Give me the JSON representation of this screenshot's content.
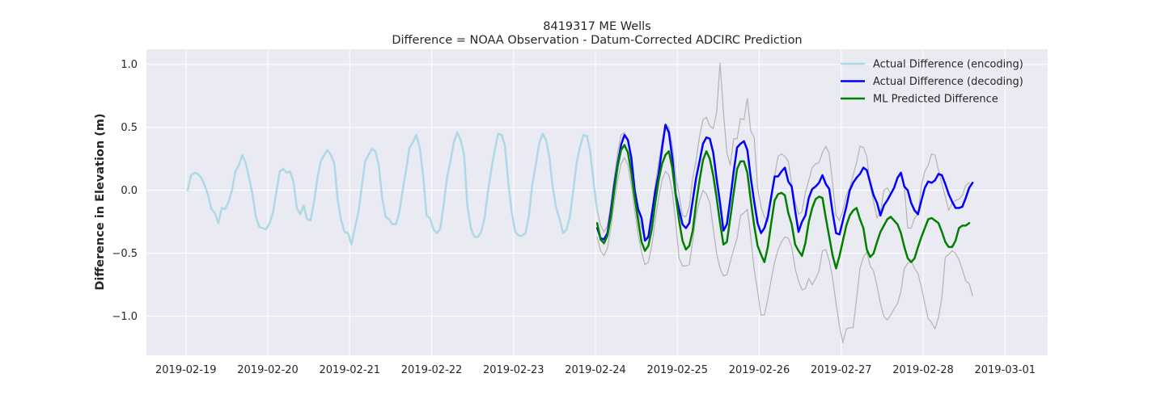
{
  "chart_data": {
    "type": "line",
    "title": "8419317 ME Wells",
    "subtitle": "Difference = NOAA Observation - Datum-Corrected ADCIRC Prediction",
    "xlabel": "",
    "ylabel": "Difference in Elevation (m)",
    "x_ticks": [
      "2019-02-19",
      "2019-02-20",
      "2019-02-21",
      "2019-02-22",
      "2019-02-23",
      "2019-02-24",
      "2019-02-25",
      "2019-02-26",
      "2019-02-27",
      "2019-02-28",
      "2019-03-01"
    ],
    "y_ticks": [
      "1.0",
      "0.5",
      "0.0",
      "−0.5",
      "−1.0"
    ],
    "xlim": [
      "2019-02-18 12:26",
      "2019-03-01 12:30"
    ],
    "ylim": [
      -1.31,
      1.12
    ],
    "grid": true,
    "legend_position": "top-right",
    "colors": {
      "background": "#eaeaf2",
      "grid": "#ffffff",
      "encoding": "#add8e6",
      "decoding": "#0000ff",
      "predicted": "#008000",
      "bounds": "#b3b3b3"
    },
    "series": [
      {
        "name": "Actual Difference (encoding)",
        "x_start": "2019-02-19 00:30",
        "x_step_hours": 1,
        "values": [
          0.0,
          0.12,
          0.14,
          0.13,
          0.1,
          0.04,
          -0.04,
          -0.15,
          -0.18,
          -0.26,
          -0.14,
          -0.15,
          -0.09,
          0.0,
          0.15,
          0.2,
          0.28,
          0.22,
          0.1,
          -0.03,
          -0.21,
          -0.29,
          -0.3,
          -0.31,
          -0.26,
          -0.18,
          -0.01,
          0.15,
          0.17,
          0.14,
          0.15,
          0.07,
          -0.14,
          -0.19,
          -0.12,
          -0.23,
          -0.24,
          -0.1,
          0.09,
          0.23,
          0.28,
          0.32,
          0.28,
          0.21,
          -0.08,
          -0.24,
          -0.33,
          -0.34,
          -0.43,
          -0.3,
          -0.18,
          0.02,
          0.23,
          0.28,
          0.33,
          0.31,
          0.2,
          -0.06,
          -0.21,
          -0.23,
          -0.27,
          -0.27,
          -0.18,
          0.0,
          0.16,
          0.34,
          0.38,
          0.44,
          0.34,
          0.12,
          -0.2,
          -0.22,
          -0.31,
          -0.34,
          -0.31,
          -0.12,
          0.1,
          0.23,
          0.38,
          0.46,
          0.4,
          0.28,
          -0.13,
          -0.3,
          -0.37,
          -0.37,
          -0.33,
          -0.22,
          -0.01,
          0.17,
          0.32,
          0.45,
          0.44,
          0.35,
          0.05,
          -0.18,
          -0.33,
          -0.36,
          -0.36,
          -0.34,
          -0.2,
          0.05,
          0.2,
          0.37,
          0.45,
          0.4,
          0.26,
          0.02,
          -0.14,
          -0.23,
          -0.34,
          -0.31,
          -0.21,
          0.0,
          0.22,
          0.35,
          0.44,
          0.43,
          0.3,
          0.05,
          -0.16
        ]
      },
      {
        "name": "Actual Difference (decoding)",
        "x_start": "2019-02-24 00:30",
        "x_step_hours": 1,
        "values": [
          -0.3,
          -0.38,
          -0.39,
          -0.34,
          -0.17,
          0.04,
          0.21,
          0.36,
          0.44,
          0.4,
          0.26,
          0.0,
          -0.15,
          -0.22,
          -0.4,
          -0.37,
          -0.19,
          -0.01,
          0.13,
          0.33,
          0.52,
          0.46,
          0.26,
          -0.03,
          -0.15,
          -0.27,
          -0.3,
          -0.26,
          -0.08,
          0.1,
          0.23,
          0.37,
          0.42,
          0.41,
          0.3,
          0.09,
          -0.1,
          -0.32,
          -0.27,
          -0.07,
          0.15,
          0.34,
          0.37,
          0.39,
          0.32,
          0.1,
          -0.09,
          -0.26,
          -0.34,
          -0.3,
          -0.21,
          -0.05,
          0.11,
          0.11,
          0.15,
          0.18,
          0.07,
          0.03,
          -0.16,
          -0.33,
          -0.25,
          -0.2,
          -0.06,
          0.01,
          0.03,
          0.06,
          0.12,
          0.05,
          0.01,
          -0.18,
          -0.34,
          -0.35,
          -0.24,
          -0.13,
          0.0,
          0.06,
          0.1,
          0.13,
          0.18,
          0.16,
          0.06,
          -0.04,
          -0.1,
          -0.2,
          -0.12,
          -0.08,
          -0.03,
          0.02,
          0.1,
          0.14,
          0.03,
          0.0,
          -0.1,
          -0.16,
          -0.19,
          -0.08,
          0.02,
          0.07,
          0.06,
          0.08,
          0.13,
          0.12,
          0.05,
          -0.03,
          -0.09,
          -0.14,
          -0.14,
          -0.13,
          -0.06,
          0.02,
          0.06
        ]
      },
      {
        "name": "ML Predicted Difference",
        "x_start": "2019-02-24 00:30",
        "x_step_hours": 1,
        "values": [
          -0.26,
          -0.39,
          -0.42,
          -0.36,
          -0.21,
          0.0,
          0.19,
          0.32,
          0.36,
          0.3,
          0.14,
          -0.06,
          -0.24,
          -0.41,
          -0.48,
          -0.44,
          -0.31,
          -0.1,
          0.08,
          0.21,
          0.28,
          0.31,
          0.18,
          -0.04,
          -0.24,
          -0.4,
          -0.47,
          -0.44,
          -0.32,
          -0.1,
          0.08,
          0.24,
          0.31,
          0.25,
          0.12,
          -0.06,
          -0.26,
          -0.43,
          -0.41,
          -0.22,
          -0.02,
          0.17,
          0.23,
          0.23,
          0.14,
          -0.08,
          -0.28,
          -0.44,
          -0.51,
          -0.57,
          -0.45,
          -0.26,
          -0.08,
          -0.03,
          -0.02,
          -0.04,
          -0.18,
          -0.27,
          -0.43,
          -0.48,
          -0.52,
          -0.42,
          -0.25,
          -0.14,
          -0.07,
          -0.05,
          -0.06,
          -0.22,
          -0.37,
          -0.52,
          -0.62,
          -0.52,
          -0.4,
          -0.28,
          -0.2,
          -0.16,
          -0.14,
          -0.23,
          -0.3,
          -0.47,
          -0.53,
          -0.5,
          -0.41,
          -0.33,
          -0.28,
          -0.23,
          -0.21,
          -0.24,
          -0.27,
          -0.34,
          -0.45,
          -0.54,
          -0.57,
          -0.54,
          -0.45,
          -0.37,
          -0.3,
          -0.23,
          -0.22,
          -0.24,
          -0.26,
          -0.33,
          -0.41,
          -0.45,
          -0.45,
          -0.4,
          -0.3,
          -0.28,
          -0.28,
          -0.26
        ]
      },
      {
        "name": "",
        "x_start": "2019-02-24 00:30",
        "x_step_hours": 1,
        "values": [
          -0.16,
          -0.28,
          -0.33,
          -0.28,
          -0.11,
          0.1,
          0.3,
          0.44,
          0.46,
          0.39,
          0.22,
          0.0,
          -0.18,
          -0.3,
          -0.4,
          -0.35,
          -0.18,
          0.04,
          0.22,
          0.39,
          0.53,
          0.5,
          0.36,
          0.12,
          -0.04,
          -0.2,
          -0.21,
          -0.13,
          0.1,
          0.24,
          0.43,
          0.56,
          0.58,
          0.51,
          0.49,
          0.62,
          1.01,
          0.62,
          0.3,
          0.2,
          0.41,
          0.41,
          0.57,
          0.56,
          0.73,
          0.47,
          0.42,
          0.02,
          -0.13,
          -0.21,
          -0.25,
          -0.08,
          0.12,
          0.27,
          0.29,
          0.27,
          0.23,
          0.05,
          -0.09,
          -0.19,
          -0.17,
          -0.02,
          0.08,
          0.18,
          0.21,
          0.22,
          0.3,
          0.35,
          0.29,
          0.05,
          -0.2,
          -0.24,
          -0.16,
          -0.04,
          0.02,
          0.12,
          0.22,
          0.35,
          0.34,
          0.27,
          0.03,
          -0.09,
          -0.22,
          -0.17,
          0.0,
          0.02,
          -0.03,
          0.02,
          0.09,
          0.12,
          0.02,
          -0.3,
          -0.3,
          -0.22,
          -0.19,
          0.04,
          0.15,
          0.2,
          0.29,
          0.28,
          0.16,
          0.05,
          -0.05,
          -0.16,
          -0.1,
          -0.08,
          -0.07,
          -0.04,
          0.04,
          0.06
        ]
      },
      {
        "name": "",
        "x_start": "2019-02-24 00:30",
        "x_step_hours": 1,
        "values": [
          -0.37,
          -0.48,
          -0.52,
          -0.46,
          -0.3,
          -0.1,
          0.08,
          0.21,
          0.26,
          0.2,
          0.04,
          -0.16,
          -0.35,
          -0.49,
          -0.59,
          -0.57,
          -0.44,
          -0.24,
          -0.06,
          0.08,
          0.15,
          0.12,
          -0.01,
          -0.25,
          -0.54,
          -0.6,
          -0.6,
          -0.59,
          -0.4,
          -0.2,
          -0.08,
          0.0,
          -0.03,
          -0.1,
          -0.3,
          -0.5,
          -0.62,
          -0.68,
          -0.67,
          -0.57,
          -0.47,
          -0.38,
          -0.2,
          -0.18,
          -0.15,
          -0.37,
          -0.63,
          -0.8,
          -0.99,
          -0.99,
          -0.86,
          -0.71,
          -0.57,
          -0.47,
          -0.41,
          -0.37,
          -0.38,
          -0.45,
          -0.62,
          -0.72,
          -0.79,
          -0.78,
          -0.7,
          -0.75,
          -0.7,
          -0.64,
          -0.48,
          -0.47,
          -0.56,
          -0.7,
          -0.9,
          -1.08,
          -1.21,
          -1.1,
          -1.09,
          -1.09,
          -0.86,
          -0.62,
          -0.53,
          -0.49,
          -0.6,
          -0.64,
          -0.76,
          -0.9,
          -1.0,
          -1.03,
          -0.99,
          -0.94,
          -0.9,
          -0.8,
          -0.62,
          -0.58,
          -0.56,
          -0.62,
          -0.66,
          -0.77,
          -0.9,
          -1.02,
          -1.05,
          -1.1,
          -1.01,
          -0.85,
          -0.53,
          -0.51,
          -0.48,
          -0.5,
          -0.55,
          -0.63,
          -0.72,
          -0.74,
          -0.84
        ]
      }
    ]
  }
}
